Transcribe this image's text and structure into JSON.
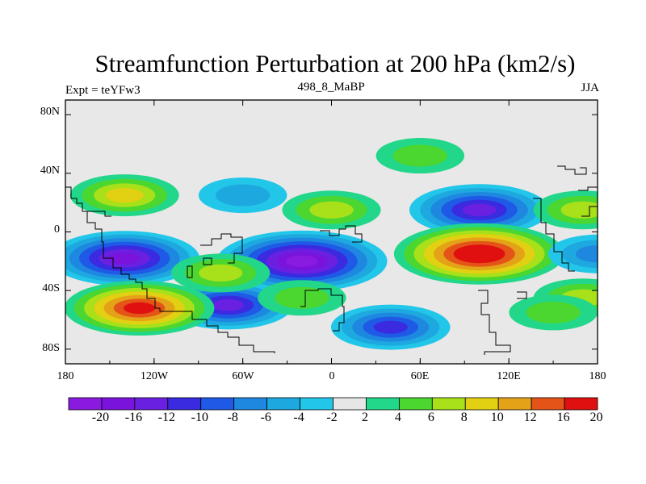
{
  "title": "Streamfunction Perturbation at 200 hPa (km2/s)",
  "subtitle_left": "Expt = teYFw3",
  "subtitle_center": "498_8_MaBP",
  "subtitle_right": "JJA",
  "lat_ticks": [
    "80N",
    "40N",
    "0",
    "40S",
    "80S"
  ],
  "lon_ticks": [
    "180",
    "120W",
    "60W",
    "0",
    "60E",
    "120E",
    "180"
  ],
  "colorbar": {
    "labels": [
      "-20",
      "-16",
      "-12",
      "-10",
      "-8",
      "-6",
      "-4",
      "-2",
      "2",
      "4",
      "6",
      "8",
      "10",
      "12",
      "16",
      "20"
    ],
    "colors": [
      "#8a1ae0",
      "#7a14dc",
      "#6a20e0",
      "#3a2ae0",
      "#1e5ae6",
      "#1e88e0",
      "#1ea8e0",
      "#22c6e8",
      "#e6e6e6",
      "#22d68a",
      "#4cd630",
      "#a8e01a",
      "#e2d012",
      "#e4a218",
      "#e45418",
      "#e01010"
    ]
  },
  "map_data": {
    "lon_range": [
      -180,
      180
    ],
    "lat_range": [
      -90,
      90
    ],
    "field": "streamfunction perturbation",
    "level_hPa": 200,
    "units": "km2/s",
    "features": [
      {
        "lon": -140,
        "lat": -18,
        "value": -16
      },
      {
        "lon": -20,
        "lat": -20,
        "value": -20
      },
      {
        "lon": 100,
        "lat": 15,
        "value": -14
      },
      {
        "lon": 40,
        "lat": -65,
        "value": -10
      },
      {
        "lon": -70,
        "lat": -50,
        "value": -12
      },
      {
        "lon": 100,
        "lat": -15,
        "value": 20
      },
      {
        "lon": -130,
        "lat": -52,
        "value": 16
      },
      {
        "lon": -140,
        "lat": 25,
        "value": 8
      },
      {
        "lon": 60,
        "lat": 52,
        "value": 4
      },
      {
        "lon": 0,
        "lat": 15,
        "value": 6
      },
      {
        "lon": -75,
        "lat": -28,
        "value": 6
      },
      {
        "lon": -20,
        "lat": -45,
        "value": 4
      },
      {
        "lon": 170,
        "lat": 15,
        "value": 6
      },
      {
        "lon": 170,
        "lat": -45,
        "value": 6
      },
      {
        "lon": -60,
        "lat": 25,
        "value": -4
      },
      {
        "lon": 150,
        "lat": -55,
        "value": 4
      },
      {
        "lon": 180,
        "lat": -15,
        "value": -6
      }
    ]
  }
}
